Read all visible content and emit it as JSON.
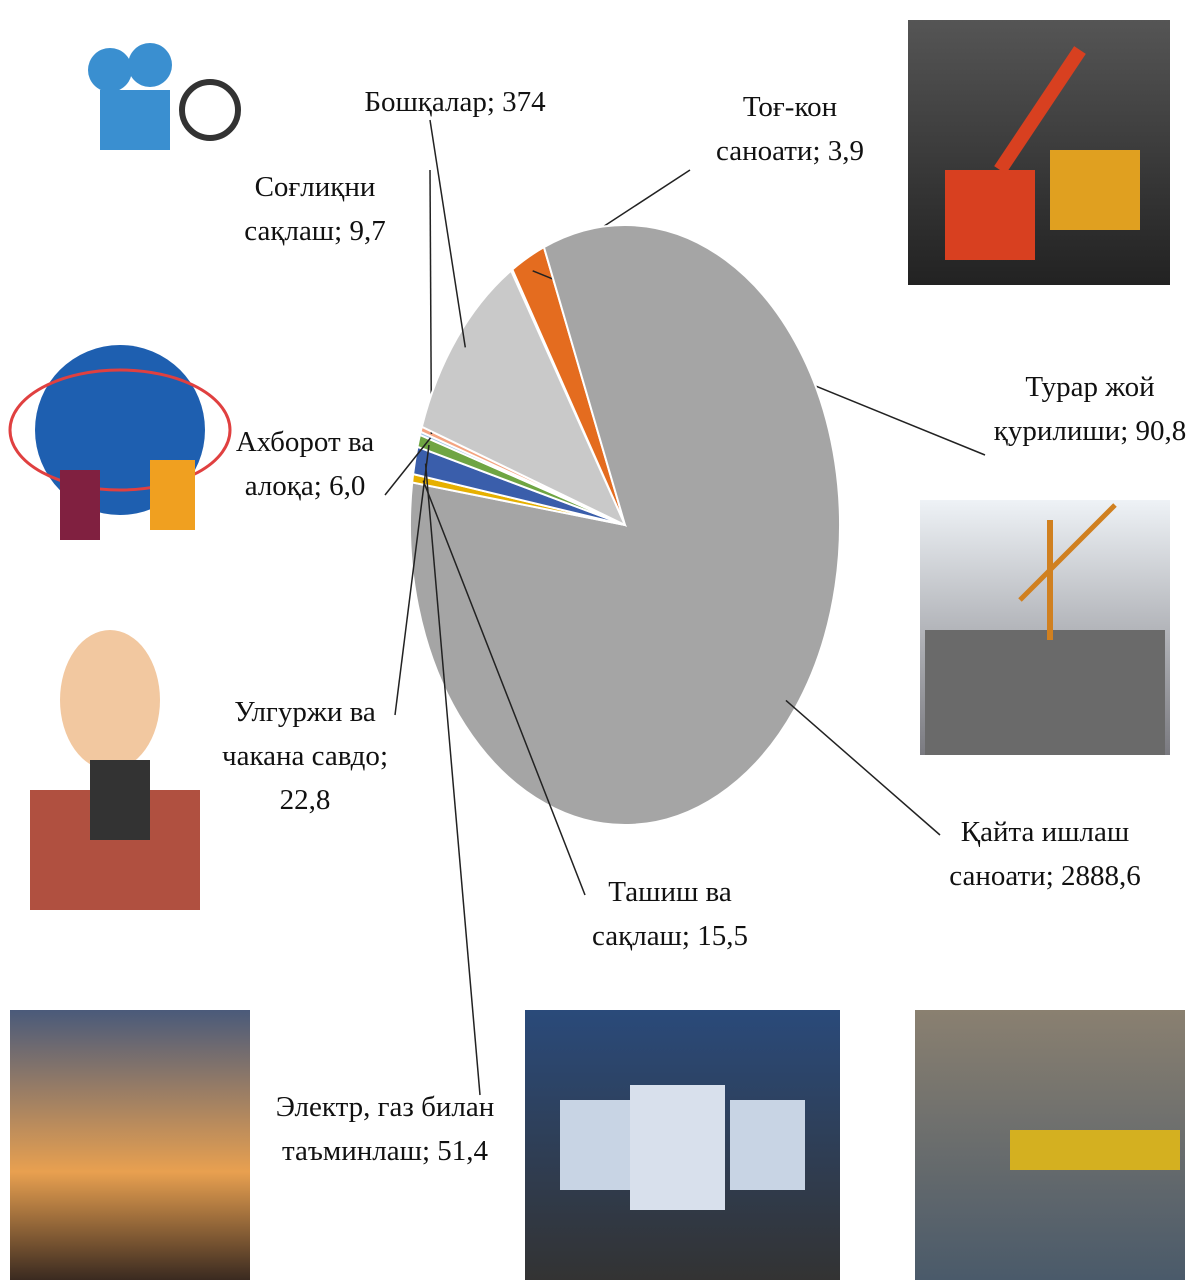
{
  "chart_data": {
    "type": "pie",
    "categories": [
      "Тоғ-кон саноати",
      "Турар жой қурилиши",
      "Қайта ишлаш саноати",
      "Ташиш ва сақлаш",
      "Электр, газ билан таъминлаш",
      "Улгуржи ва чакана савдо",
      "Ахборот ва алоқа",
      "Соғлиқни сақлаш",
      "Бошқалар"
    ],
    "values": [
      3.9,
      90.8,
      2888.6,
      15.5,
      51.4,
      22.8,
      6.0,
      9.7,
      374
    ],
    "value_labels": [
      "3,9",
      "90,8",
      "2888,6",
      "15,5",
      "51,4",
      "22,8",
      "6,0",
      "9,7",
      "374"
    ],
    "colors": [
      "#4a86c5",
      "#e46c1f",
      "#a5a5a5",
      "#e6b000",
      "#3a5eab",
      "#6fa543",
      "#9dc3e6",
      "#f4a582",
      "#c9c9c9"
    ]
  }
}
